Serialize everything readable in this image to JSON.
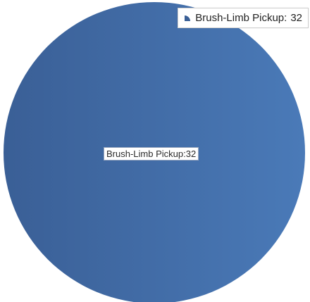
{
  "chart_data": {
    "type": "pie",
    "categories": [
      "Brush-Limb Pickup"
    ],
    "values": [
      32
    ],
    "legend_position": "top-right",
    "colors": {
      "slice_dark": "#3a5f96",
      "slice_light": "#4a7ab8"
    }
  },
  "legend": {
    "label": "Brush-Limb Pickup:",
    "value": "32"
  },
  "data_label": {
    "text": "Brush-Limb Pickup:32"
  }
}
